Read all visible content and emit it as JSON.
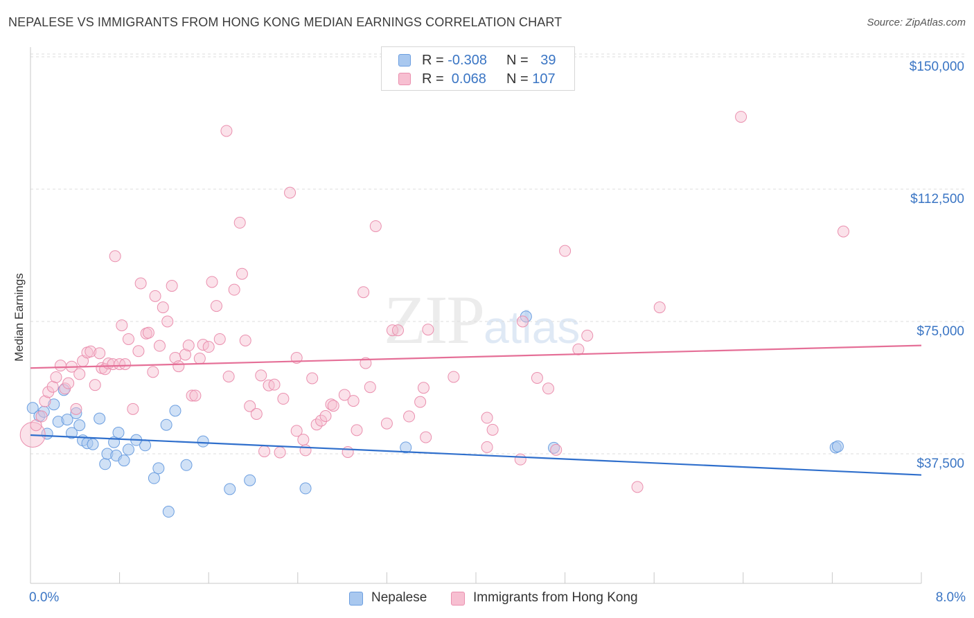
{
  "header": {
    "title": "NEPALESE VS IMMIGRANTS FROM HONG KONG MEDIAN EARNINGS CORRELATION CHART",
    "source": "Source: ZipAtlas.com"
  },
  "watermark": {
    "zip": "ZIP",
    "atlas": "atlas"
  },
  "legend_top": {
    "rows": [
      {
        "r_label": "R = ",
        "r_value": "-0.308",
        "n_label": "N = ",
        "n_value": "39",
        "color": "#a9c8ef",
        "border": "#6b9ee0"
      },
      {
        "r_label": "R = ",
        "r_value": " 0.068",
        "n_label": "N = ",
        "n_value": "107",
        "color": "#f7bfd1",
        "border": "#ea8fae"
      }
    ]
  },
  "legend_bottom": [
    {
      "label": "Nepalese",
      "color": "#a9c8ef",
      "border": "#6b9ee0"
    },
    {
      "label": "Immigrants from Hong Kong",
      "color": "#f7bfd1",
      "border": "#ea8fae"
    }
  ],
  "axes": {
    "ylabel": "Median Earnings",
    "yticks": [
      "$150,000",
      "$112,500",
      "$75,000",
      "$37,500"
    ],
    "xtick_left": "0.0%",
    "xtick_right": "8.0%"
  },
  "chart_data": {
    "type": "scatter",
    "title": "NEPALESE VS IMMIGRANTS FROM HONG KONG MEDIAN EARNINGS CORRELATION CHART",
    "xlabel": "",
    "ylabel": "Median Earnings",
    "xlim": [
      0,
      8.0
    ],
    "ylim": [
      0,
      157000
    ],
    "yticks": [
      37500,
      75000,
      112500,
      150000
    ],
    "grid": true,
    "legend_placement": "top-center",
    "series": [
      {
        "name": "Nepalese",
        "color": "#a9c8ef",
        "line_color": "#2f6fcc",
        "trend": [
          [
            0,
            42800
          ],
          [
            8.0,
            31500
          ]
        ],
        "r": -0.308,
        "n": 39,
        "points": [
          [
            0.02,
            50500
          ],
          [
            0.08,
            48200
          ],
          [
            0.12,
            49400
          ],
          [
            0.15,
            43200
          ],
          [
            0.21,
            51500
          ],
          [
            0.25,
            46600
          ],
          [
            0.3,
            55600
          ],
          [
            0.33,
            47200
          ],
          [
            0.37,
            43400
          ],
          [
            0.41,
            49000
          ],
          [
            0.44,
            45600
          ],
          [
            0.47,
            41300
          ],
          [
            0.51,
            40500
          ],
          [
            0.56,
            40200
          ],
          [
            0.62,
            47500
          ],
          [
            0.67,
            34600
          ],
          [
            0.69,
            37500
          ],
          [
            0.75,
            40800
          ],
          [
            0.77,
            37000
          ],
          [
            0.79,
            43500
          ],
          [
            0.84,
            35600
          ],
          [
            0.88,
            38700
          ],
          [
            0.95,
            41400
          ],
          [
            1.03,
            39900
          ],
          [
            1.11,
            30600
          ],
          [
            1.15,
            33400
          ],
          [
            1.22,
            45700
          ],
          [
            1.24,
            21100
          ],
          [
            1.3,
            49700
          ],
          [
            1.4,
            34300
          ],
          [
            1.55,
            41000
          ],
          [
            1.79,
            27500
          ],
          [
            1.97,
            30000
          ],
          [
            2.47,
            27700
          ],
          [
            3.37,
            39300
          ],
          [
            4.45,
            76400
          ],
          [
            4.7,
            39200
          ],
          [
            7.23,
            39300
          ],
          [
            7.25,
            39600
          ]
        ]
      },
      {
        "name": "Immigrants from Hong Kong",
        "color": "#f7bfd1",
        "line_color": "#e56f97",
        "trend": [
          [
            0,
            61800
          ],
          [
            8.0,
            68200
          ]
        ],
        "r": 0.068,
        "n": 107,
        "points": [
          [
            0.02,
            42900
          ],
          [
            0.05,
            45600
          ],
          [
            0.1,
            48100
          ],
          [
            0.13,
            52400
          ],
          [
            0.16,
            55000
          ],
          [
            0.2,
            56500
          ],
          [
            0.23,
            59200
          ],
          [
            0.27,
            62500
          ],
          [
            0.31,
            56000
          ],
          [
            0.34,
            57500
          ],
          [
            0.37,
            62200
          ],
          [
            0.41,
            50200
          ],
          [
            0.44,
            60100
          ],
          [
            0.47,
            63800
          ],
          [
            0.51,
            66200
          ],
          [
            0.54,
            66500
          ],
          [
            0.58,
            57000
          ],
          [
            0.62,
            66000
          ],
          [
            0.64,
            61800
          ],
          [
            0.67,
            61500
          ],
          [
            0.7,
            63100
          ],
          [
            0.74,
            62900
          ],
          [
            0.76,
            93500
          ],
          [
            0.8,
            62900
          ],
          [
            0.82,
            73900
          ],
          [
            0.85,
            62900
          ],
          [
            0.88,
            70000
          ],
          [
            0.92,
            50200
          ],
          [
            0.97,
            66600
          ],
          [
            0.99,
            85800
          ],
          [
            1.04,
            71600
          ],
          [
            1.06,
            71800
          ],
          [
            1.1,
            60700
          ],
          [
            1.12,
            82200
          ],
          [
            1.16,
            68100
          ],
          [
            1.19,
            79000
          ],
          [
            1.23,
            75000
          ],
          [
            1.27,
            85100
          ],
          [
            1.3,
            64700
          ],
          [
            1.33,
            62300
          ],
          [
            1.39,
            65600
          ],
          [
            1.42,
            68200
          ],
          [
            1.45,
            54000
          ],
          [
            1.48,
            54000
          ],
          [
            1.52,
            64500
          ],
          [
            1.55,
            68400
          ],
          [
            1.6,
            67800
          ],
          [
            1.63,
            86200
          ],
          [
            1.67,
            79400
          ],
          [
            1.7,
            70000
          ],
          [
            1.76,
            129000
          ],
          [
            1.78,
            59400
          ],
          [
            1.83,
            84000
          ],
          [
            1.88,
            103000
          ],
          [
            1.9,
            88500
          ],
          [
            1.93,
            69600
          ],
          [
            1.97,
            51000
          ],
          [
            2.03,
            48800
          ],
          [
            2.07,
            59700
          ],
          [
            2.1,
            38200
          ],
          [
            2.14,
            56900
          ],
          [
            2.19,
            57100
          ],
          [
            2.24,
            37900
          ],
          [
            2.27,
            53100
          ],
          [
            2.33,
            111500
          ],
          [
            2.39,
            64700
          ],
          [
            2.39,
            44000
          ],
          [
            2.45,
            41500
          ],
          [
            2.47,
            38500
          ],
          [
            2.53,
            58900
          ],
          [
            2.57,
            45800
          ],
          [
            2.61,
            46900
          ],
          [
            2.65,
            48200
          ],
          [
            2.7,
            51500
          ],
          [
            2.72,
            51100
          ],
          [
            2.82,
            54200
          ],
          [
            2.85,
            38000
          ],
          [
            2.9,
            52500
          ],
          [
            2.93,
            44200
          ],
          [
            2.99,
            83300
          ],
          [
            3.01,
            63200
          ],
          [
            3.05,
            56400
          ],
          [
            3.1,
            102000
          ],
          [
            3.2,
            46100
          ],
          [
            3.25,
            72500
          ],
          [
            3.3,
            72500
          ],
          [
            3.4,
            48100
          ],
          [
            3.5,
            52200
          ],
          [
            3.53,
            56200
          ],
          [
            3.55,
            42200
          ],
          [
            3.57,
            72700
          ],
          [
            3.8,
            59300
          ],
          [
            4.1,
            39400
          ],
          [
            4.1,
            47700
          ],
          [
            4.15,
            44300
          ],
          [
            4.4,
            35900
          ],
          [
            4.42,
            75000
          ],
          [
            4.55,
            59000
          ],
          [
            4.65,
            56000
          ],
          [
            4.72,
            38600
          ],
          [
            4.8,
            95000
          ],
          [
            4.92,
            67100
          ],
          [
            5.0,
            71000
          ],
          [
            5.45,
            28100
          ],
          [
            5.65,
            79000
          ],
          [
            6.38,
            133000
          ],
          [
            7.3,
            100500
          ]
        ]
      }
    ]
  }
}
